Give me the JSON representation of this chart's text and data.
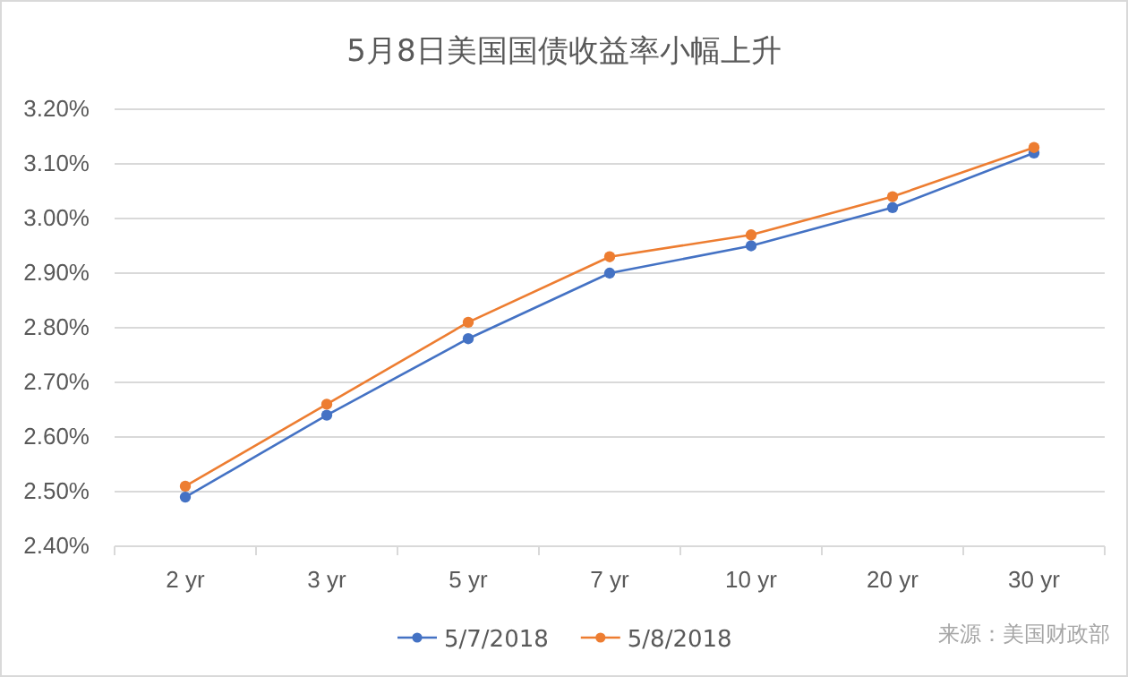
{
  "chart_data": {
    "type": "line",
    "title": "5月8日美国国债收益率小幅上升",
    "categories": [
      "2 yr",
      "3 yr",
      "5 yr",
      "7 yr",
      "10 yr",
      "20 yr",
      "30 yr"
    ],
    "series": [
      {
        "name": "5/7/2018",
        "color": "#4472c4",
        "values": [
          2.49,
          2.64,
          2.78,
          2.9,
          2.95,
          3.02,
          3.12
        ]
      },
      {
        "name": "5/8/2018",
        "color": "#ed7d31",
        "values": [
          2.51,
          2.66,
          2.81,
          2.93,
          2.97,
          3.04,
          3.13
        ]
      }
    ],
    "ylim": [
      2.4,
      3.2
    ],
    "yticks": [
      {
        "value": 2.4,
        "label": "2.40%"
      },
      {
        "value": 2.5,
        "label": "2.50%"
      },
      {
        "value": 2.6,
        "label": "2.60%"
      },
      {
        "value": 2.7,
        "label": "2.70%"
      },
      {
        "value": 2.8,
        "label": "2.80%"
      },
      {
        "value": 2.9,
        "label": "2.90%"
      },
      {
        "value": 3.0,
        "label": "3.00%"
      },
      {
        "value": 3.1,
        "label": "3.10%"
      },
      {
        "value": 3.2,
        "label": "3.20%"
      }
    ],
    "grid": "y",
    "legend": "bottom",
    "marker": "circle",
    "line_style": "solid",
    "annotations": [
      "来源：美国财政部"
    ]
  }
}
